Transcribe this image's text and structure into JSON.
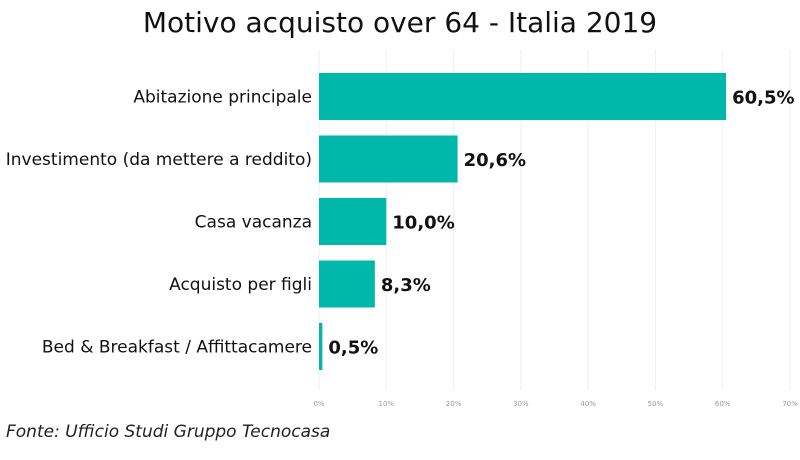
{
  "chart_data": {
    "type": "bar",
    "orientation": "horizontal",
    "title": "Motivo acquisto over 64 - Italia 2019",
    "categories": [
      "Abitazione principale",
      "Investimento (da mettere a reddito)",
      "Casa vacanza",
      "Acquisto per figli",
      "Bed & Breakfast / Affittacamere"
    ],
    "values": [
      60.5,
      20.6,
      10.0,
      8.3,
      0.5
    ],
    "value_labels": [
      "60,5%",
      "20,6%",
      "10,0%",
      "8,3%",
      "0,5%"
    ],
    "xlim": [
      0,
      70
    ],
    "x_ticks": [
      0,
      10,
      20,
      30,
      40,
      50,
      60,
      70
    ],
    "x_tick_labels": [
      "0%",
      "10%",
      "20%",
      "30%",
      "40%",
      "50%",
      "60%",
      "70%"
    ],
    "xlabel": "",
    "ylabel": "",
    "grid": true,
    "bar_color": "#00B8AA",
    "grid_color": "#EFEFEF"
  },
  "source_note": "Fonte: Ufficio Studi Gruppo Tecnocasa"
}
